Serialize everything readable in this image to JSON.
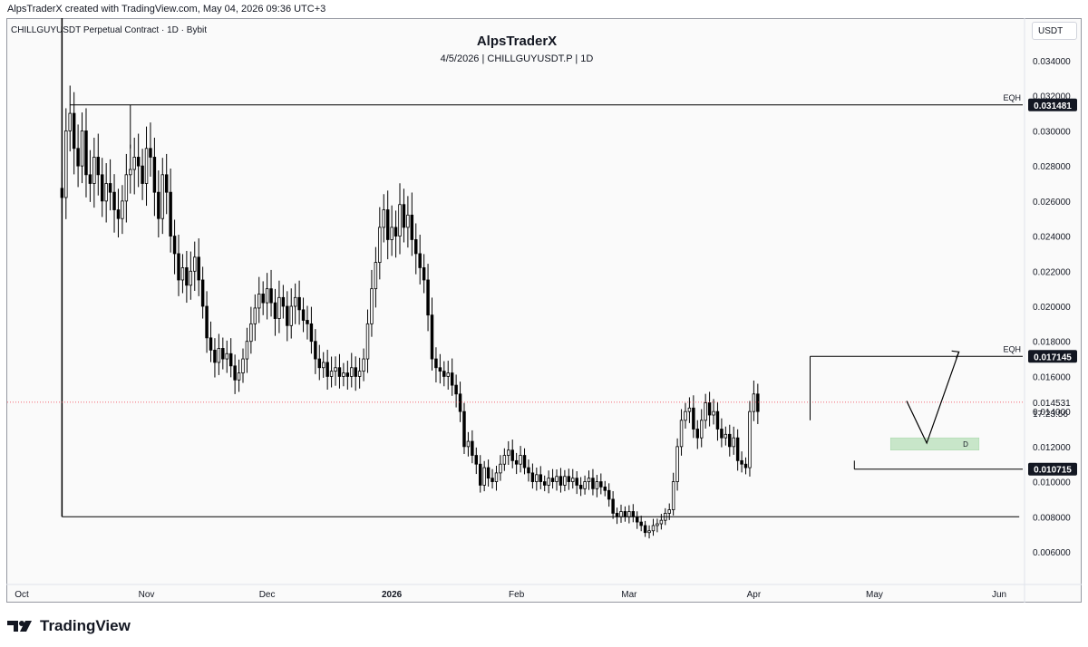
{
  "header": {
    "attribution": "AlpsTraderX created with TradingView.com, May 04, 2026 09:36 UTC+3"
  },
  "legend": {
    "symbol_description": "CHILLGUYUSDT Perpetual Contract · 1D · Bybit"
  },
  "currency_label": "USDT",
  "footer": {
    "brand": "TradingView"
  },
  "colors": {
    "up": "#ffffff",
    "down": "#000000",
    "wick": "#000000",
    "box": "#c8e6c9",
    "last_price_line": "#f23645"
  },
  "chart_data": {
    "type": "candlestick",
    "title": "AlpsTraderX",
    "subtitle": "4/5/2026 | CHILLGUYUSDT.P | 1D",
    "ylim": [
      0.005,
      0.035
    ],
    "y_ticks": [
      "0.034000",
      "0.032000",
      "0.030000",
      "0.028000",
      "0.026000",
      "0.024000",
      "0.022000",
      "0.020000",
      "0.018000",
      "0.016000",
      "0.014000",
      "0.012000",
      "0.010000",
      "0.008000",
      "0.006000"
    ],
    "x_ticks": [
      {
        "label": "Oct",
        "day": 0
      },
      {
        "label": "Nov",
        "day": 31
      },
      {
        "label": "Dec",
        "day": 61
      },
      {
        "label": "2026",
        "day": 92
      },
      {
        "label": "Feb",
        "day": 123
      },
      {
        "label": "Mar",
        "day": 151
      },
      {
        "label": "Apr",
        "day": 182
      },
      {
        "label": "May",
        "day": 212
      },
      {
        "label": "Jun",
        "day": 243
      }
    ],
    "candle_start_day": 10,
    "series_close": [
      0.0262,
      0.03,
      0.031,
      0.029,
      0.028,
      0.03,
      0.0275,
      0.027,
      0.0285,
      0.0275,
      0.026,
      0.027,
      0.0265,
      0.0255,
      0.025,
      0.026,
      0.0275,
      0.0278,
      0.0285,
      0.028,
      0.027,
      0.029,
      0.0285,
      0.0265,
      0.025,
      0.0275,
      0.0265,
      0.024,
      0.023,
      0.0215,
      0.0222,
      0.0212,
      0.022,
      0.0228,
      0.0215,
      0.02,
      0.0182,
      0.0175,
      0.0168,
      0.0176,
      0.017,
      0.0173,
      0.0166,
      0.0158,
      0.0162,
      0.017,
      0.018,
      0.019,
      0.0199,
      0.0207,
      0.0202,
      0.021,
      0.0202,
      0.0193,
      0.0205,
      0.02,
      0.0189,
      0.02,
      0.0205,
      0.0198,
      0.0192,
      0.019,
      0.018,
      0.017,
      0.0165,
      0.0168,
      0.016,
      0.0163,
      0.0165,
      0.016,
      0.0162,
      0.016,
      0.0165,
      0.016,
      0.0163,
      0.017,
      0.019,
      0.021,
      0.0225,
      0.0245,
      0.0255,
      0.0238,
      0.0245,
      0.024,
      0.0258,
      0.0245,
      0.0252,
      0.0238,
      0.023,
      0.0222,
      0.0215,
      0.0195,
      0.017,
      0.0165,
      0.0163,
      0.016,
      0.0162,
      0.0155,
      0.015,
      0.014,
      0.012,
      0.0123,
      0.0115,
      0.011,
      0.0098,
      0.0108,
      0.0102,
      0.01,
      0.0105,
      0.011,
      0.0115,
      0.0118,
      0.0112,
      0.011,
      0.0115,
      0.0108,
      0.0105,
      0.01,
      0.0104,
      0.01,
      0.0098,
      0.0102,
      0.01,
      0.0103,
      0.0098,
      0.0103,
      0.01,
      0.0102,
      0.0098,
      0.0096,
      0.01,
      0.0102,
      0.0096,
      0.01,
      0.0097,
      0.0095,
      0.009,
      0.0082,
      0.008,
      0.0083,
      0.008,
      0.0083,
      0.008,
      0.0077,
      0.0075,
      0.0071,
      0.0072,
      0.0075,
      0.0076,
      0.0078,
      0.0082,
      0.0084,
      0.01,
      0.012,
      0.0135,
      0.014,
      0.0142,
      0.013,
      0.0125,
      0.0135,
      0.0145,
      0.0138,
      0.014,
      0.013,
      0.0125,
      0.0127,
      0.012,
      0.0125,
      0.0112,
      0.011,
      0.0108,
      0.014,
      0.015,
      0.014
    ],
    "horizontal_lines": [
      {
        "label": "EQH",
        "value": 0.031481,
        "price_label": "0.031481"
      },
      {
        "label": "EQH",
        "value": 0.017145,
        "price_label": "0.017145"
      },
      {
        "label": "",
        "value": 0.010715,
        "price_label": "0.010715"
      },
      {
        "label": "",
        "value": 0.008,
        "price_label": ""
      }
    ],
    "last_price": {
      "value": 0.014531,
      "label": "0.014531",
      "countdown": "17:23:56"
    },
    "zone": {
      "label": "D",
      "low": 0.0118,
      "high": 0.0125
    },
    "projection": [
      {
        "day": 220,
        "value": 0.0146
      },
      {
        "day": 225,
        "value": 0.0122
      },
      {
        "day": 233,
        "value": 0.0174
      }
    ]
  }
}
